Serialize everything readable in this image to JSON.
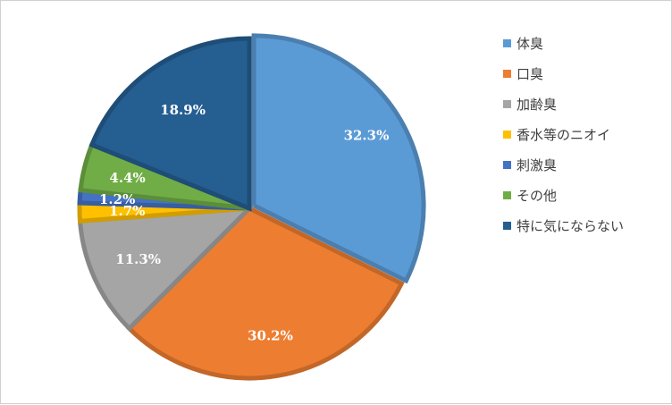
{
  "chart_data": {
    "type": "pie",
    "title": "",
    "unit": "%",
    "legend_position": "right",
    "slices": [
      {
        "label": "体臭",
        "value": 32.3,
        "display": "32.3%",
        "color": "#5b9bd5"
      },
      {
        "label": "口臭",
        "value": 30.2,
        "display": "30.2%",
        "color": "#ed7d31"
      },
      {
        "label": "加齢臭",
        "value": 11.3,
        "display": "11.3%",
        "color": "#a5a5a5"
      },
      {
        "label": "香水等のニオイ",
        "value": 1.7,
        "display": "1.7%",
        "color": "#ffc000"
      },
      {
        "label": "刺激臭",
        "value": 1.2,
        "display": "1.2%",
        "color": "#4472c4"
      },
      {
        "label": "その他",
        "value": 4.4,
        "display": "4.4%",
        "color": "#70ad47"
      },
      {
        "label": "特に気にならない",
        "value": 18.9,
        "display": "18.9%",
        "color": "#255e91"
      }
    ]
  }
}
